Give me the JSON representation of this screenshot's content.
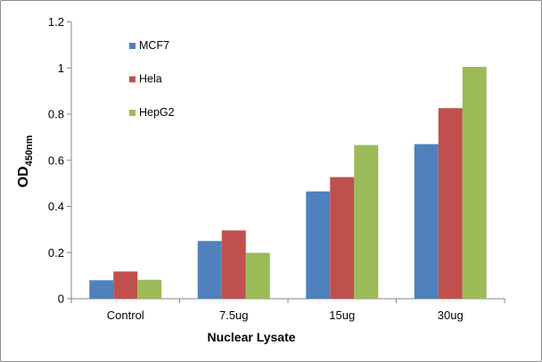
{
  "chart_data": {
    "type": "bar",
    "categories": [
      "Control",
      "7.5ug",
      "15ug",
      "30ug"
    ],
    "series": [
      {
        "name": "MCF7",
        "color": "#4f81bd",
        "values": [
          0.08,
          0.25,
          0.465,
          0.67
        ]
      },
      {
        "name": "Hela",
        "color": "#c0504d",
        "values": [
          0.118,
          0.296,
          0.527,
          0.826
        ]
      },
      {
        "name": "HepG2",
        "color": "#9bbb59",
        "values": [
          0.082,
          0.199,
          0.666,
          1.005
        ]
      }
    ],
    "xlabel": "Nuclear Lysate",
    "ylabel": {
      "main": "OD",
      "subscript": "450nm"
    },
    "ylim": [
      0,
      1.2
    ],
    "yticks": [
      "0",
      "0.2",
      "0.4",
      "0.6",
      "0.8",
      "1",
      "1.2"
    ],
    "grid": false,
    "legend": "top-left"
  }
}
